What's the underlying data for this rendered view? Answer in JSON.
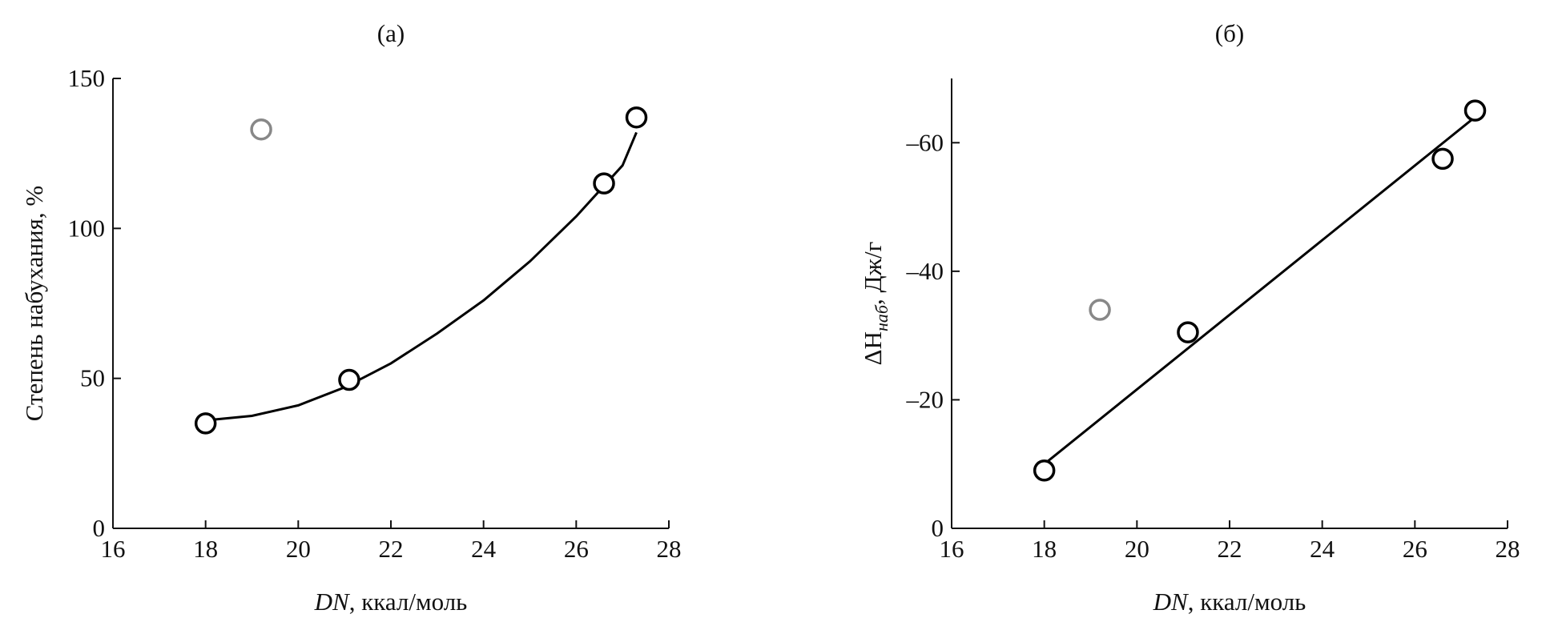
{
  "chart_data": [
    {
      "type": "scatter",
      "title": "(a)",
      "y_label": {
        "text": "Степень набухания, %"
      },
      "x_label": {
        "var": "DN",
        "unit": ", ккал/моль"
      },
      "xlim": [
        16,
        28
      ],
      "xticks": [
        16,
        18,
        20,
        22,
        24,
        26,
        28
      ],
      "ylim": [
        0,
        150
      ],
      "yticks": [
        0,
        50,
        100,
        150
      ],
      "series": [
        {
          "color": "#000000",
          "x": [
            18,
            21.1,
            26.6,
            27.3
          ],
          "values": [
            35,
            49.5,
            115,
            137
          ]
        },
        {
          "color": "#888888",
          "x": [
            19.2
          ],
          "values": [
            133
          ]
        }
      ],
      "fit": {
        "color": "#000000",
        "x": [
          18,
          19,
          20,
          21,
          22,
          23,
          24,
          25,
          26,
          27,
          27.3
        ],
        "values": [
          36,
          37.5,
          41,
          47,
          55,
          65,
          76,
          89,
          104,
          121,
          132
        ]
      }
    },
    {
      "type": "scatter",
      "title": "(б)",
      "y_label": {
        "main": "ΔH",
        "sub": "наб",
        "rest": ", Дж/г"
      },
      "x_label": {
        "var": "DN",
        "unit": ", ккал/моль"
      },
      "xlim": [
        16,
        28
      ],
      "xticks": [
        16,
        18,
        20,
        22,
        24,
        26,
        28
      ],
      "ylim": [
        0,
        -70
      ],
      "yticks": [
        0,
        {
          "value": -20,
          "label": "–20"
        },
        {
          "value": -40,
          "label": "–40"
        },
        {
          "value": -60,
          "label": "–60"
        }
      ],
      "series": [
        {
          "color": "#000000",
          "x": [
            18,
            21.1,
            26.6,
            27.3
          ],
          "values": [
            -9,
            -30.5,
            -57.5,
            -65
          ]
        },
        {
          "color": "#888888",
          "x": [
            19.2
          ],
          "values": [
            -34
          ]
        }
      ],
      "fit": {
        "color": "#000000",
        "x": [
          18,
          27.3
        ],
        "values": [
          -10,
          -64
        ]
      }
    }
  ]
}
